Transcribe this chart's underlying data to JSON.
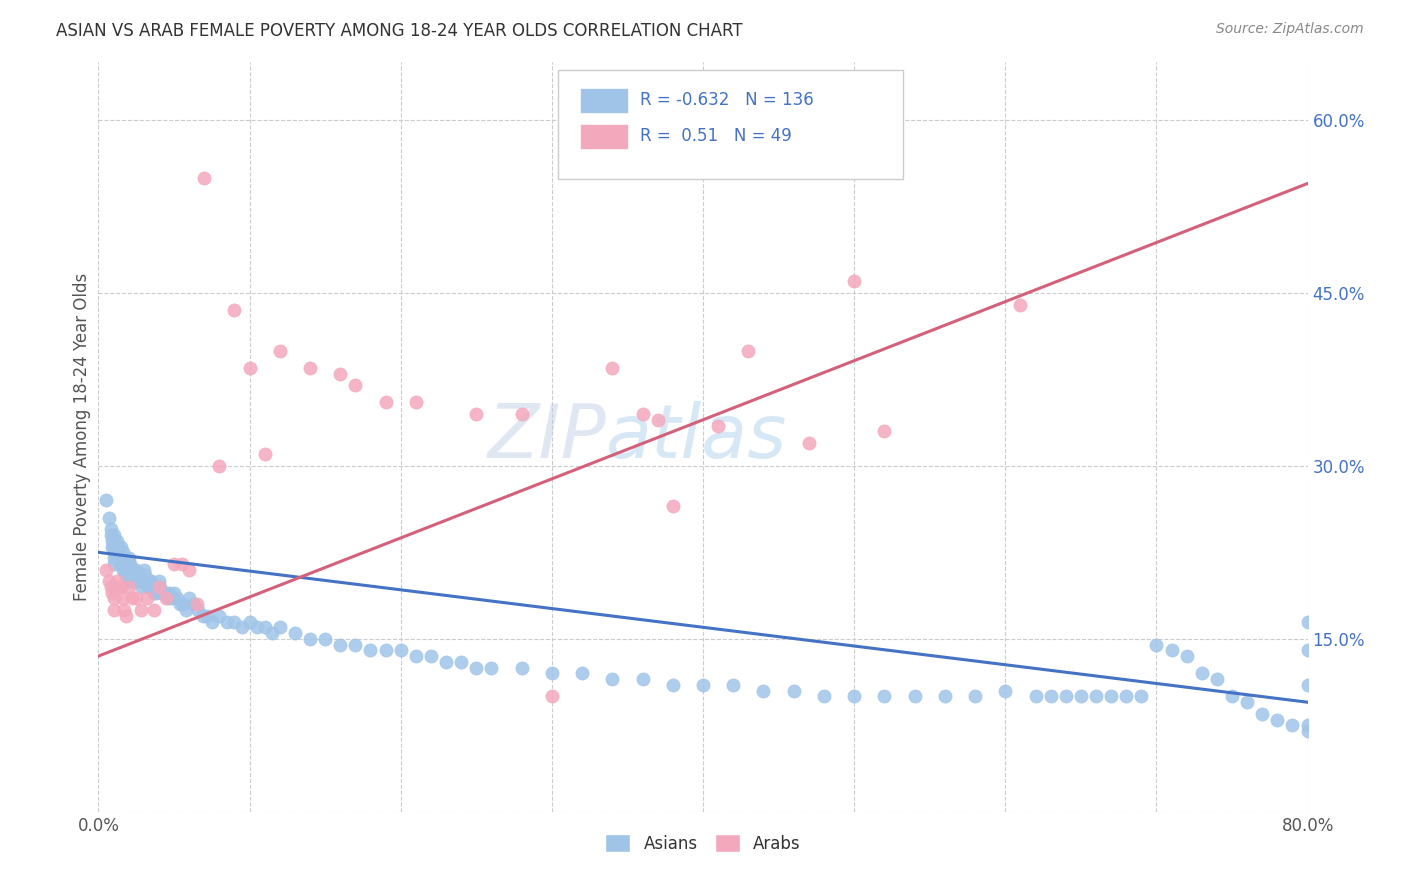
{
  "title": "ASIAN VS ARAB FEMALE POVERTY AMONG 18-24 YEAR OLDS CORRELATION CHART",
  "source": "Source: ZipAtlas.com",
  "ylabel": "Female Poverty Among 18-24 Year Olds",
  "xlim": [
    0.0,
    0.8
  ],
  "ylim": [
    0.0,
    0.65
  ],
  "xtick_vals": [
    0.0,
    0.1,
    0.2,
    0.3,
    0.4,
    0.5,
    0.6,
    0.7,
    0.8
  ],
  "xtick_labels_show": [
    "0.0%",
    "",
    "",
    "",
    "",
    "",
    "",
    "",
    "80.0%"
  ],
  "ytick_vals": [
    0.0,
    0.15,
    0.3,
    0.45,
    0.6
  ],
  "ytick_labels": [
    "",
    "15.0%",
    "30.0%",
    "45.0%",
    "60.0%"
  ],
  "asian_color": "#a0c4e8",
  "arab_color": "#f4a8bc",
  "asian_line_color": "#4472c4",
  "arab_line_color": "#d4607a",
  "tick_label_color": "#4472c4",
  "grid_color": "#cccccc",
  "R_asian": -0.632,
  "N_asian": 136,
  "R_arab": 0.51,
  "N_arab": 49,
  "watermark_zip": "ZIP",
  "watermark_atlas": "atlas",
  "asian_line_x0": 0.0,
  "asian_line_y0": 0.225,
  "asian_line_x1": 0.8,
  "asian_line_y1": 0.095,
  "arab_line_x0": 0.0,
  "arab_line_y0": 0.135,
  "arab_line_x1": 0.8,
  "arab_line_y1": 0.545,
  "asian_x": [
    0.005,
    0.007,
    0.008,
    0.008,
    0.009,
    0.009,
    0.01,
    0.01,
    0.01,
    0.01,
    0.01,
    0.01,
    0.012,
    0.012,
    0.013,
    0.013,
    0.014,
    0.014,
    0.015,
    0.015,
    0.016,
    0.016,
    0.016,
    0.017,
    0.017,
    0.018,
    0.018,
    0.019,
    0.019,
    0.02,
    0.02,
    0.02,
    0.021,
    0.021,
    0.022,
    0.022,
    0.023,
    0.023,
    0.024,
    0.025,
    0.025,
    0.026,
    0.027,
    0.028,
    0.029,
    0.03,
    0.03,
    0.031,
    0.032,
    0.033,
    0.034,
    0.035,
    0.036,
    0.037,
    0.038,
    0.04,
    0.041,
    0.042,
    0.044,
    0.046,
    0.047,
    0.049,
    0.05,
    0.052,
    0.054,
    0.056,
    0.058,
    0.06,
    0.063,
    0.066,
    0.069,
    0.072,
    0.075,
    0.08,
    0.085,
    0.09,
    0.095,
    0.1,
    0.105,
    0.11,
    0.115,
    0.12,
    0.13,
    0.14,
    0.15,
    0.16,
    0.17,
    0.18,
    0.19,
    0.2,
    0.21,
    0.22,
    0.23,
    0.24,
    0.25,
    0.26,
    0.28,
    0.3,
    0.32,
    0.34,
    0.36,
    0.38,
    0.4,
    0.42,
    0.44,
    0.46,
    0.48,
    0.5,
    0.52,
    0.54,
    0.56,
    0.58,
    0.6,
    0.62,
    0.63,
    0.64,
    0.65,
    0.66,
    0.67,
    0.68,
    0.69,
    0.7,
    0.71,
    0.72,
    0.73,
    0.74,
    0.75,
    0.76,
    0.77,
    0.78,
    0.79,
    0.8,
    0.8,
    0.8,
    0.8,
    0.8
  ],
  "asian_y": [
    0.27,
    0.255,
    0.245,
    0.24,
    0.235,
    0.23,
    0.24,
    0.235,
    0.23,
    0.225,
    0.22,
    0.215,
    0.235,
    0.225,
    0.23,
    0.22,
    0.225,
    0.215,
    0.23,
    0.22,
    0.225,
    0.215,
    0.21,
    0.22,
    0.21,
    0.215,
    0.205,
    0.21,
    0.2,
    0.22,
    0.215,
    0.205,
    0.215,
    0.205,
    0.21,
    0.2,
    0.21,
    0.2,
    0.205,
    0.21,
    0.2,
    0.205,
    0.2,
    0.2,
    0.195,
    0.21,
    0.2,
    0.205,
    0.2,
    0.195,
    0.2,
    0.2,
    0.195,
    0.19,
    0.19,
    0.2,
    0.195,
    0.19,
    0.19,
    0.185,
    0.19,
    0.185,
    0.19,
    0.185,
    0.18,
    0.18,
    0.175,
    0.185,
    0.18,
    0.175,
    0.17,
    0.17,
    0.165,
    0.17,
    0.165,
    0.165,
    0.16,
    0.165,
    0.16,
    0.16,
    0.155,
    0.16,
    0.155,
    0.15,
    0.15,
    0.145,
    0.145,
    0.14,
    0.14,
    0.14,
    0.135,
    0.135,
    0.13,
    0.13,
    0.125,
    0.125,
    0.125,
    0.12,
    0.12,
    0.115,
    0.115,
    0.11,
    0.11,
    0.11,
    0.105,
    0.105,
    0.1,
    0.1,
    0.1,
    0.1,
    0.1,
    0.1,
    0.105,
    0.1,
    0.1,
    0.1,
    0.1,
    0.1,
    0.1,
    0.1,
    0.1,
    0.145,
    0.14,
    0.135,
    0.12,
    0.115,
    0.1,
    0.095,
    0.085,
    0.08,
    0.075,
    0.165,
    0.14,
    0.11,
    0.075,
    0.07
  ],
  "arab_x": [
    0.005,
    0.007,
    0.008,
    0.009,
    0.01,
    0.01,
    0.01,
    0.012,
    0.013,
    0.015,
    0.016,
    0.017,
    0.018,
    0.02,
    0.022,
    0.025,
    0.028,
    0.032,
    0.037,
    0.04,
    0.045,
    0.05,
    0.055,
    0.06,
    0.065,
    0.07,
    0.08,
    0.09,
    0.1,
    0.11,
    0.12,
    0.14,
    0.16,
    0.17,
    0.19,
    0.21,
    0.25,
    0.28,
    0.3,
    0.34,
    0.36,
    0.37,
    0.38,
    0.41,
    0.43,
    0.47,
    0.5,
    0.52,
    0.61
  ],
  "arab_y": [
    0.21,
    0.2,
    0.195,
    0.19,
    0.195,
    0.185,
    0.175,
    0.2,
    0.195,
    0.195,
    0.185,
    0.175,
    0.17,
    0.195,
    0.185,
    0.185,
    0.175,
    0.185,
    0.175,
    0.195,
    0.185,
    0.215,
    0.215,
    0.21,
    0.18,
    0.55,
    0.3,
    0.435,
    0.385,
    0.31,
    0.4,
    0.385,
    0.38,
    0.37,
    0.355,
    0.355,
    0.345,
    0.345,
    0.1,
    0.385,
    0.345,
    0.34,
    0.265,
    0.335,
    0.4,
    0.32,
    0.46,
    0.33,
    0.44
  ]
}
